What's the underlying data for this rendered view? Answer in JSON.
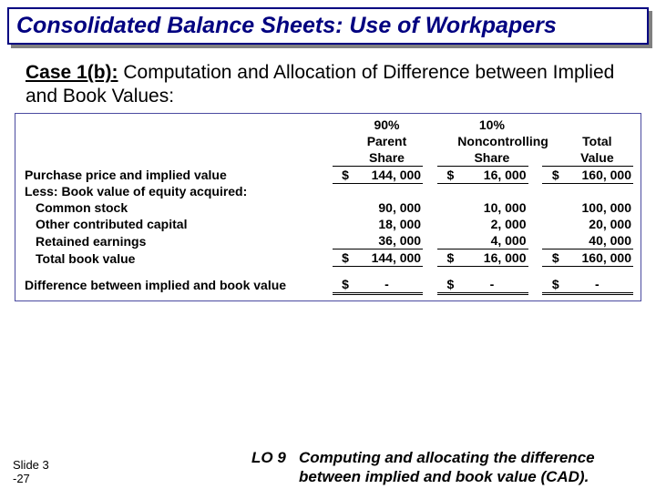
{
  "title": "Consolidated Balance Sheets: Use of Workpapers",
  "subtitle_lead": "Case 1(b):",
  "subtitle_rest": " Computation and Allocation of Difference between Implied and Book Values:",
  "table": {
    "headers": {
      "pct_parent": "90%",
      "parent": "Parent",
      "parent_share": "Share",
      "pct_nci": "10%",
      "nci": "Noncontrolling",
      "nci_share": "Share",
      "total": "Total",
      "total_value": "Value"
    },
    "rows": {
      "purchase_label": "Purchase price and implied value",
      "purchase": {
        "parent": "144, 000",
        "nci": "16, 000",
        "total": "160, 000"
      },
      "less_label": "Less: Book value of equity acquired:",
      "common_label": "Common stock",
      "common": {
        "parent": "90, 000",
        "nci": "10, 000",
        "total": "100, 000"
      },
      "ocap_label": "Other contributed capital",
      "ocap": {
        "parent": "18, 000",
        "nci": "2, 000",
        "total": "20, 000"
      },
      "re_label": "Retained earnings",
      "re": {
        "parent": "36, 000",
        "nci": "4, 000",
        "total": "40, 000"
      },
      "tbv_label": "Total book value",
      "tbv": {
        "parent": "144, 000",
        "nci": "16, 000",
        "total": "160, 000"
      },
      "diff_label": "Difference between implied and book value",
      "diff": {
        "parent": "-",
        "nci": "-",
        "total": "-"
      }
    },
    "currency": "$"
  },
  "slide": {
    "l1": "Slide 3",
    "l2": "-27"
  },
  "lo": {
    "label": "LO 9",
    "text": "Computing and allocating the difference between implied and book value (CAD)."
  }
}
